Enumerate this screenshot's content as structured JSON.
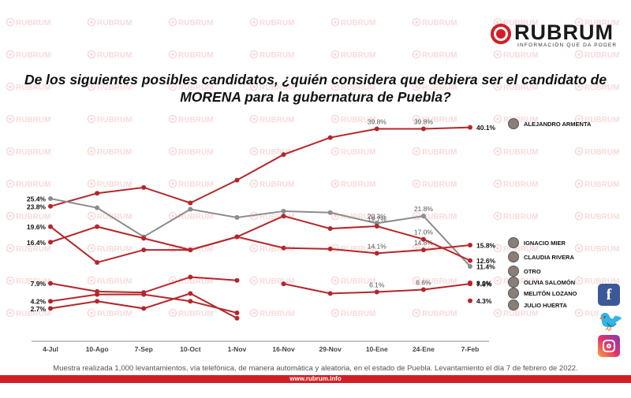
{
  "brand": {
    "name": "RUBRUM",
    "tagline": "INFORMACIÓN QUE DA PODER",
    "watermark": "RUBRUM",
    "color": "#d21f26"
  },
  "title_line1": "De los siguientes posibles candidatos, ¿quién considera que debiera ser  el candidato de",
  "title_line2": "MORENA para la gubernatura de Puebla?",
  "note": "Muestra realizada 1,000 levantamientos, vía telefónica, de manera automática y aleatoria, en el estado de Puebla. Levantamiento el día 7 de febrero de 2022.",
  "footer_url": "www.rubrum.info",
  "social": {
    "facebook": "f",
    "twitter": "🐦"
  },
  "icons": [
    "facebook-icon",
    "twitter-icon",
    "instagram-icon",
    "candidate-avatar-icon"
  ],
  "colors": {
    "red_series": "#b5262a",
    "gray_series": "#8c8c8c"
  },
  "chart_data": {
    "type": "line",
    "categories": [
      "4-Jul",
      "10-Ago",
      "7-Sep",
      "10-Oct",
      "1-Nov",
      "16-Nov",
      "29-Nov",
      "10-Ene",
      "24-Ene",
      "7-Feb"
    ],
    "series": [
      {
        "name": "ALEJANDRO ARMENTA",
        "color": "#b5262a",
        "values": [
          23.8,
          26.5,
          27.7,
          24.5,
          29.2,
          34.5,
          38.0,
          39.8,
          39.8,
          40.1
        ],
        "labels": [
          "23.8%",
          null,
          null,
          null,
          null,
          null,
          null,
          "39.8%",
          "39.8%",
          "40.1%"
        ]
      },
      {
        "name": "OTRO",
        "color": "#8c8c8c",
        "values": [
          25.4,
          23.5,
          17.5,
          23.2,
          21.5,
          22.8,
          22.5,
          20.3,
          21.8,
          11.4
        ],
        "labels": [
          "25.4%",
          null,
          null,
          null,
          null,
          null,
          null,
          "20.3%",
          "21.8%",
          "11.4%"
        ]
      },
      {
        "name": "IGNACIO MIER",
        "color": "#b5262a",
        "values": [
          16.4,
          19.6,
          17.2,
          14.8,
          17.5,
          15.2,
          15.0,
          14.1,
          14.8,
          15.8
        ],
        "labels": [
          "16.4%",
          null,
          null,
          null,
          null,
          null,
          null,
          "14.1%",
          "14.8%",
          "15.8%"
        ]
      },
      {
        "name": "CLAUDIA RIVERA",
        "color": "#b5262a",
        "values": [
          19.6,
          12.2,
          14.8,
          14.8,
          17.5,
          21.8,
          19.2,
          19.7,
          17.0,
          12.6
        ],
        "labels": [
          "19.6%",
          null,
          null,
          null,
          null,
          null,
          null,
          "19.7%",
          "17.0%",
          "12.6%"
        ]
      },
      {
        "name": "OLIVIA SALOMÓN",
        "color": "#b5262a",
        "values": [
          7.9,
          6.2,
          6.0,
          9.2,
          8.5,
          null,
          null,
          null,
          null,
          null
        ],
        "labels": [
          "7.9%",
          null,
          null,
          null,
          null,
          null,
          null,
          null,
          null,
          null
        ]
      },
      {
        "name": "MELITÓN LOZANO",
        "color": "#b5262a",
        "values": [
          4.2,
          5.6,
          5.6,
          4.2,
          1.8,
          null,
          null,
          null,
          null,
          null
        ],
        "labels": [
          "4.2%",
          null,
          null,
          null,
          null,
          null,
          null,
          null,
          null,
          null
        ]
      },
      {
        "name": "JULIO HUERTA",
        "color": "#b5262a",
        "values": [
          2.7,
          4.2,
          2.7,
          5.8,
          0.7,
          null,
          null,
          null,
          null,
          null
        ],
        "labels": [
          "2.7%",
          null,
          null,
          null,
          null,
          null,
          null,
          null,
          null,
          null
        ]
      },
      {
        "name": "",
        "color": "#b5262a",
        "values": [
          null,
          null,
          null,
          null,
          null,
          7.8,
          5.8,
          6.1,
          6.6,
          7.8
        ],
        "labels": [
          null,
          null,
          null,
          null,
          null,
          null,
          null,
          "6.1%",
          "6.6%",
          "7.8%"
        ]
      },
      {
        "name": "",
        "color": "#b5262a",
        "values": [
          null,
          null,
          null,
          null,
          null,
          null,
          null,
          null,
          null,
          8.0
        ],
        "labels": [
          null,
          null,
          null,
          null,
          null,
          null,
          null,
          null,
          null,
          "8.0%"
        ]
      },
      {
        "name": "",
        "color": "#b5262a",
        "values": [
          null,
          null,
          null,
          null,
          null,
          null,
          null,
          null,
          null,
          4.3
        ],
        "labels": [
          null,
          null,
          null,
          null,
          null,
          null,
          null,
          null,
          null,
          "4.3%"
        ]
      }
    ],
    "legend": [
      "ALEJANDRO ARMENTA",
      "IGNACIO MIER",
      "CLAUDIA RIVERA",
      "OTRO",
      "OLIVIA SALOMÓN",
      "MELITÓN LOZANO",
      "JULIO HUERTA"
    ],
    "ylim": [
      0,
      42
    ],
    "grid": false,
    "xlabel": "",
    "ylabel": ""
  }
}
